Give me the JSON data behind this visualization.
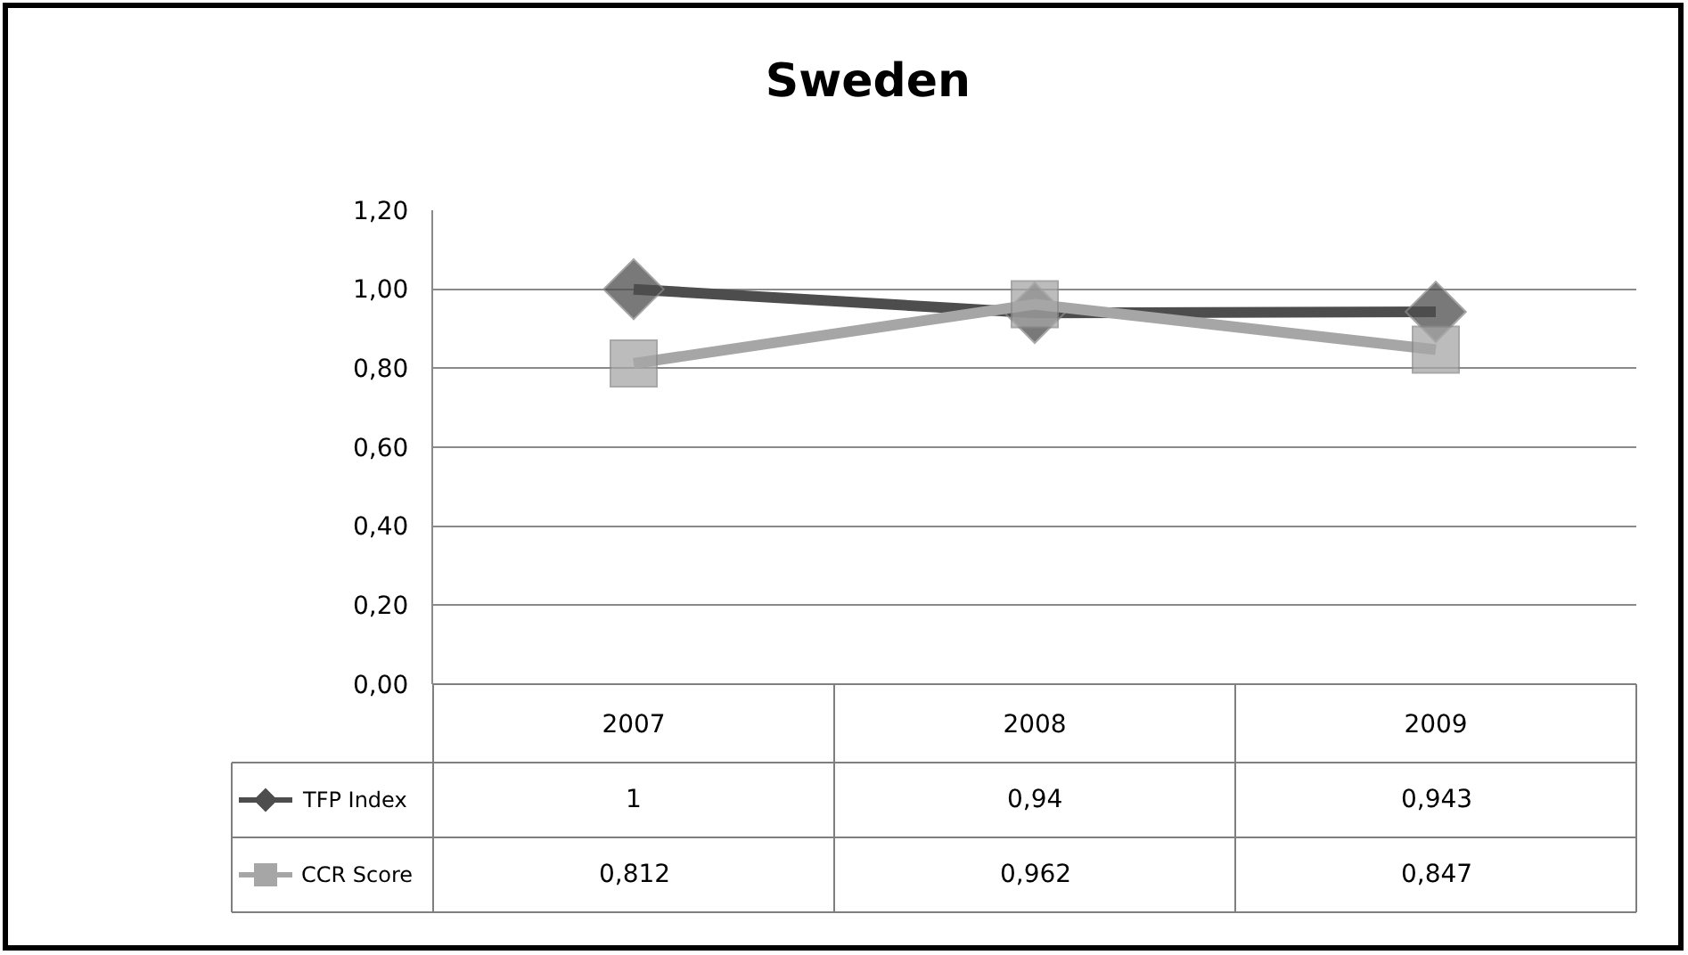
{
  "chart_data": {
    "type": "line",
    "title": "Sweden",
    "categories": [
      "2007",
      "2008",
      "2009"
    ],
    "series": [
      {
        "name": "TFP Index",
        "color": "#4d4d4d",
        "marker": "diamond",
        "values": [
          1,
          0.94,
          0.943
        ],
        "value_labels": [
          "1",
          "0,94",
          "0,943"
        ]
      },
      {
        "name": "CCR Score",
        "color": "#a6a6a6",
        "marker": "square",
        "values": [
          0.812,
          0.962,
          0.847
        ],
        "value_labels": [
          "0,812",
          "0,962",
          "0,847"
        ]
      }
    ],
    "ylim": [
      0,
      1.2
    ],
    "yticks": [
      {
        "value": 0,
        "label": "0,00"
      },
      {
        "value": 0.2,
        "label": "0,20"
      },
      {
        "value": 0.4,
        "label": "0,40"
      },
      {
        "value": 0.6,
        "label": "0,60"
      },
      {
        "value": 0.8,
        "label": "0,80"
      },
      {
        "value": 1.0,
        "label": "1,00"
      },
      {
        "value": 1.2,
        "label": "1,20"
      }
    ],
    "grid": "y",
    "legend": "bottom left",
    "line_style": "solid"
  }
}
